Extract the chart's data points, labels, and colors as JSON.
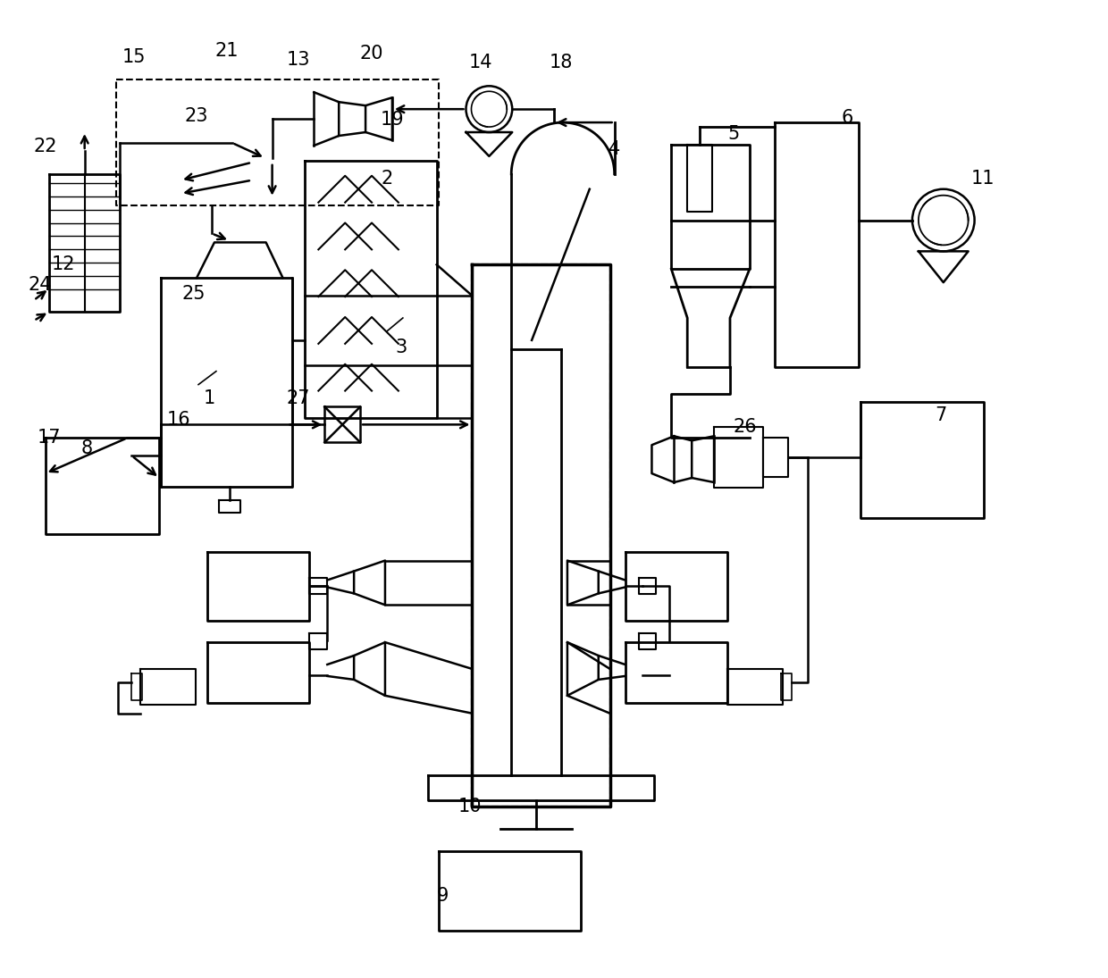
{
  "bg_color": "#ffffff",
  "figsize": [
    12.4,
    10.95
  ],
  "dpi": 100,
  "lw": 1.8
}
